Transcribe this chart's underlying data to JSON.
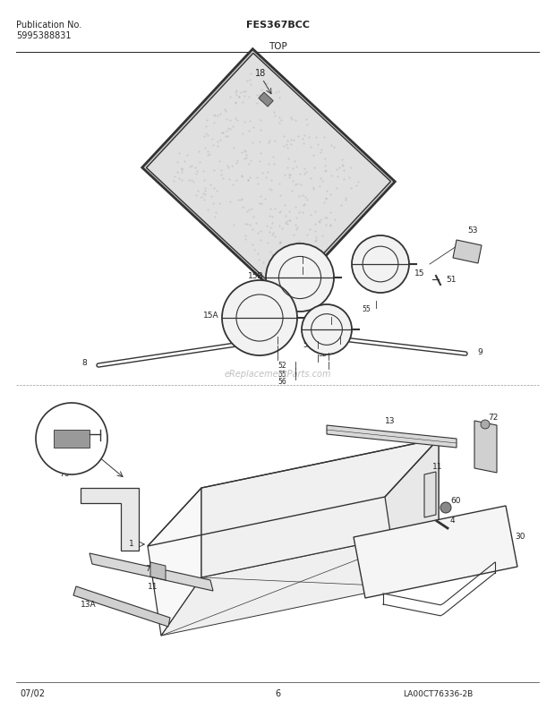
{
  "title_center": "FES367BCC",
  "title_left_line1": "Publication No.",
  "title_left_line2": "5995388831",
  "section_top": "TOP",
  "diagram_label": "LA00CT76336-2B",
  "date_label": "07/02",
  "page_label": "6",
  "bg_color": "#ffffff",
  "line_color": "#333333",
  "text_color": "#222222",
  "watermark": "eReplacementParts.com"
}
